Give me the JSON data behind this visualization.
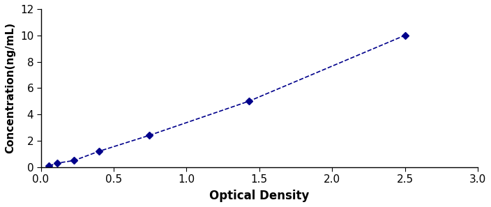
{
  "x_data": [
    0.057,
    0.114,
    0.229,
    0.4,
    0.743,
    1.429,
    2.5
  ],
  "y_data": [
    0.1,
    0.3,
    0.5,
    1.2,
    2.4,
    5.0,
    10.0
  ],
  "line_color": "#00008B",
  "marker_color": "#00008B",
  "marker_style": "D",
  "marker_size": 5,
  "line_style": "--",
  "line_width": 1.2,
  "xlabel": "Optical Density",
  "ylabel": "Concentration(ng/mL)",
  "xlim": [
    0,
    3
  ],
  "ylim": [
    0,
    12
  ],
  "xticks": [
    0,
    0.5,
    1,
    1.5,
    2,
    2.5,
    3
  ],
  "yticks": [
    0,
    2,
    4,
    6,
    8,
    10,
    12
  ],
  "xlabel_fontsize": 12,
  "ylabel_fontsize": 11,
  "tick_fontsize": 11,
  "background_color": "#ffffff",
  "border_color": "#000000"
}
